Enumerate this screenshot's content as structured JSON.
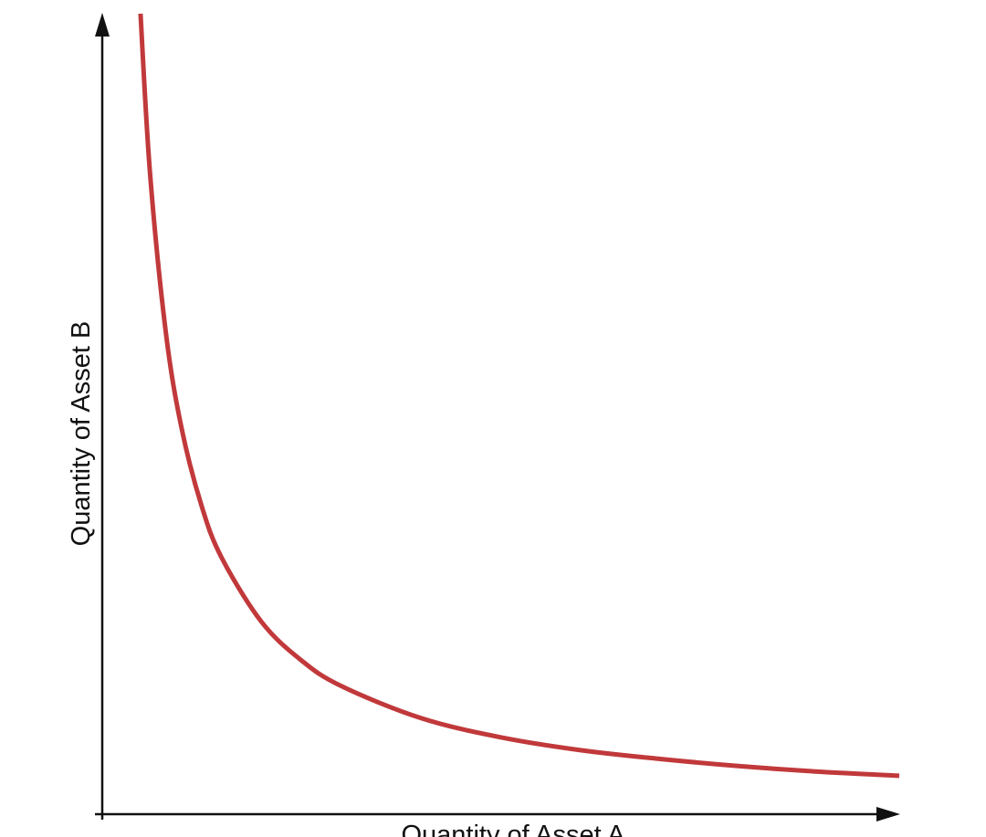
{
  "chart_data": {
    "type": "line",
    "xlabel": "Quantity of Asset A",
    "ylabel": "Quantity of Asset B",
    "x": [
      0.48,
      0.6,
      0.8,
      1,
      1.25,
      1.5,
      2,
      2.5,
      3,
      4,
      5,
      6,
      7,
      8,
      9,
      10
    ],
    "series": [
      {
        "color": "#c1393b",
        "values": [
          10,
          8,
          6,
          4.8,
          3.84,
          3.2,
          2.4,
          1.92,
          1.6,
          1.2,
          0.96,
          0.8,
          0.69,
          0.6,
          0.53,
          0.48
        ]
      }
    ],
    "xlim": [
      0,
      10
    ],
    "ylim": [
      0,
      10
    ],
    "grid": false
  }
}
